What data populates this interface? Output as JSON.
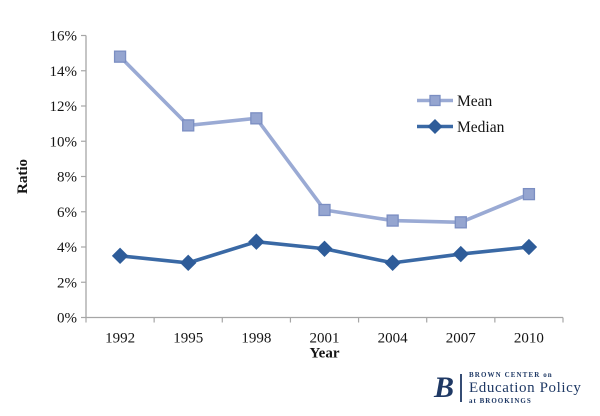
{
  "chart_data": {
    "type": "line",
    "title": "",
    "categories": [
      "1992",
      "1995",
      "1998",
      "2001",
      "2004",
      "2007",
      "2010"
    ],
    "series": [
      {
        "name": "Mean",
        "values": [
          14.8,
          10.9,
          11.3,
          6.1,
          5.5,
          5.4,
          7.0
        ],
        "color": "#9AAAD4",
        "marker": "square",
        "marker_fill": "#95A5D0",
        "marker_border": "#7B8EC2"
      },
      {
        "name": "Median",
        "values": [
          3.5,
          3.1,
          4.3,
          3.9,
          3.1,
          3.6,
          4.0
        ],
        "color": "#3A69A5",
        "marker": "diamond",
        "marker_fill": "#2E5C99",
        "marker_border": "#2E5C99"
      }
    ],
    "xlabel": "Year",
    "ylabel": "Ratio",
    "ylim": [
      0,
      16
    ],
    "ytick_step": 2,
    "yticks": [
      "0%",
      "2%",
      "4%",
      "6%",
      "8%",
      "10%",
      "12%",
      "14%",
      "16%"
    ],
    "legend": {
      "position": "inside-right",
      "entries": [
        "Mean",
        "Median"
      ]
    },
    "grid": false,
    "axis_color": "#A6A6A6",
    "text_color": "#141414"
  },
  "logo": {
    "monogram": "B",
    "line1": "BROWN CENTER on",
    "line2": "Education Policy",
    "line3": "at BROOKINGS",
    "color": "#1F3965"
  }
}
